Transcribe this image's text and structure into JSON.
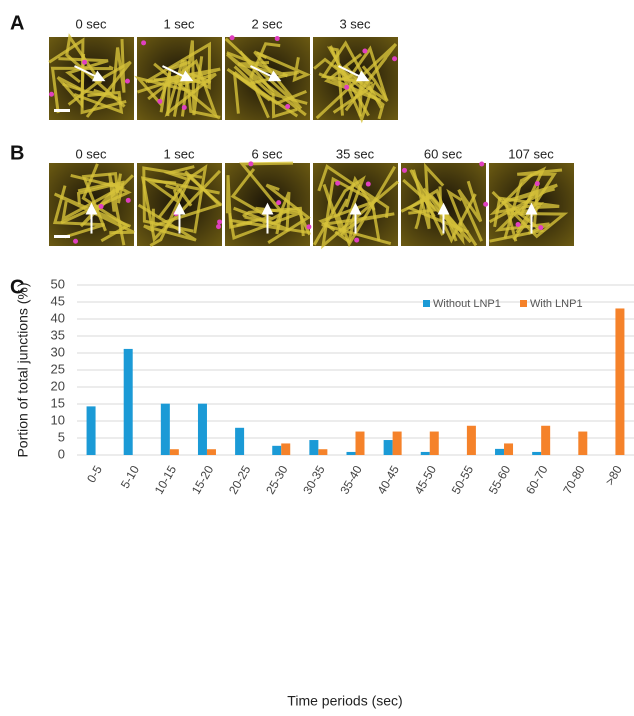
{
  "panels": {
    "A": {
      "label": "A",
      "times": [
        "0 sec",
        "1 sec",
        "2 sec",
        "3 sec"
      ]
    },
    "B": {
      "label": "B",
      "times": [
        "0 sec",
        "1 sec",
        "6 sec",
        "35 sec",
        "60 sec",
        "107 sec"
      ]
    },
    "C": {
      "label": "C"
    }
  },
  "chart_data": {
    "type": "bar",
    "categories": [
      "0-5",
      "5-10",
      "10-15",
      "15-20",
      "20-25",
      "25-30",
      "30-35",
      "35-40",
      "40-45",
      "45-50",
      "50-55",
      "55-60",
      "60-70",
      "70-80",
      ">80"
    ],
    "series": [
      {
        "name": "Without LNP1",
        "color": "#1b9ad6",
        "values": [
          14.3,
          31.2,
          15.1,
          15.1,
          8.0,
          2.7,
          4.4,
          0.9,
          4.4,
          0.9,
          0,
          1.8,
          0.9,
          0,
          0
        ]
      },
      {
        "name": "With LNP1",
        "color": "#f5822a",
        "values": [
          0,
          0,
          1.7,
          1.7,
          0,
          3.4,
          1.7,
          6.9,
          6.9,
          6.9,
          8.6,
          3.4,
          8.6,
          6.9,
          43.1
        ]
      }
    ],
    "xlabel": "Time periods (sec)",
    "ylabel": "Portion of total junctions (%)",
    "ylim": [
      0,
      50
    ],
    "yticks": [
      0,
      5,
      10,
      15,
      20,
      25,
      30,
      35,
      40,
      45,
      50
    ],
    "grid": true,
    "legend": "top-right"
  }
}
